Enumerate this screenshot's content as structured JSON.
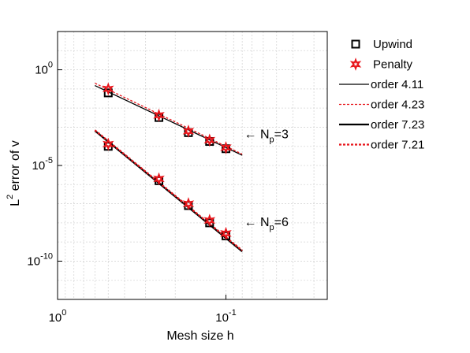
{
  "chart_data": {
    "type": "line",
    "xlabel": "Mesh size h",
    "ylabel": {
      "base": "L",
      "sup": "2",
      "rest": " error of v"
    },
    "x_scale": "log",
    "y_scale": "log",
    "x_reversed": true,
    "xlim": [
      1.0,
      0.025
    ],
    "ylim": [
      1e-12,
      100.0
    ],
    "grid": true,
    "x_ticks": [
      {
        "value": 1,
        "base": "10",
        "exp": "0"
      },
      {
        "value": 0.1,
        "base": "10",
        "exp": "-1"
      }
    ],
    "y_ticks": [
      {
        "value": 1,
        "base": "10",
        "exp": "0"
      },
      {
        "value": 1e-05,
        "base": "10",
        "exp": "-5"
      },
      {
        "value": 1e-10,
        "base": "10",
        "exp": "-10"
      }
    ],
    "legend_position": "outside-right",
    "series": [
      {
        "name": "Upwind",
        "kind": "marker",
        "marker": "square",
        "color": "#000000",
        "x": [
          0.5,
          0.25,
          0.167,
          0.125,
          0.1
        ],
        "y": [
          0.062,
          0.0032,
          0.00052,
          0.00018,
          7.5e-05
        ]
      },
      {
        "name": "Penalty",
        "kind": "marker",
        "marker": "star",
        "color": "#e8151b",
        "x": [
          0.5,
          0.25,
          0.167,
          0.125,
          0.1
        ],
        "y": [
          0.1,
          0.0042,
          0.00062,
          0.00021,
          8.5e-05
        ]
      },
      {
        "name": "order 4.11",
        "kind": "line",
        "dash": "solid",
        "width": 1.3,
        "color": "#000000",
        "x": [
          0.6,
          0.08
        ],
        "y": [
          0.15,
          3.4e-05
        ]
      },
      {
        "name": "order 4.23",
        "kind": "line",
        "dash": "dashed",
        "width": 1.3,
        "color": "#e8151b",
        "x": [
          0.6,
          0.08
        ],
        "y": [
          0.2,
          3.9e-05
        ]
      },
      {
        "name": "order 7.23",
        "kind": "line",
        "dash": "solid",
        "width": 2.2,
        "color": "#000000",
        "x": [
          0.6,
          0.08
        ],
        "y": [
          0.00065,
          3.2e-10
        ]
      },
      {
        "name": "order 7.21",
        "kind": "line",
        "dash": "dashed",
        "width": 2.2,
        "color": "#e8151b",
        "x": [
          0.6,
          0.08
        ],
        "y": [
          0.0007,
          3.6e-10
        ]
      },
      {
        "name": "",
        "kind": "marker",
        "marker": "square",
        "color": "#000000",
        "legend": false,
        "x": [
          0.5,
          0.25,
          0.167,
          0.125,
          0.1
        ],
        "y": [
          0.0001,
          1.6e-06,
          8e-08,
          1e-08,
          2.1e-09
        ]
      },
      {
        "name": "",
        "kind": "marker",
        "marker": "star",
        "color": "#e8151b",
        "legend": false,
        "x": [
          0.5,
          0.25,
          0.167,
          0.125,
          0.1
        ],
        "y": [
          0.00013,
          2e-06,
          1e-07,
          1.35e-08,
          2.8e-09
        ]
      }
    ],
    "annotations": [
      {
        "arrow": "←",
        "base": "N",
        "sub": "p",
        "rest": "=3",
        "x": 0.078,
        "y": 0.00042
      },
      {
        "arrow": "←",
        "base": "N",
        "sub": "p",
        "rest": "=6",
        "x": 0.078,
        "y": 1.1e-08
      }
    ]
  }
}
